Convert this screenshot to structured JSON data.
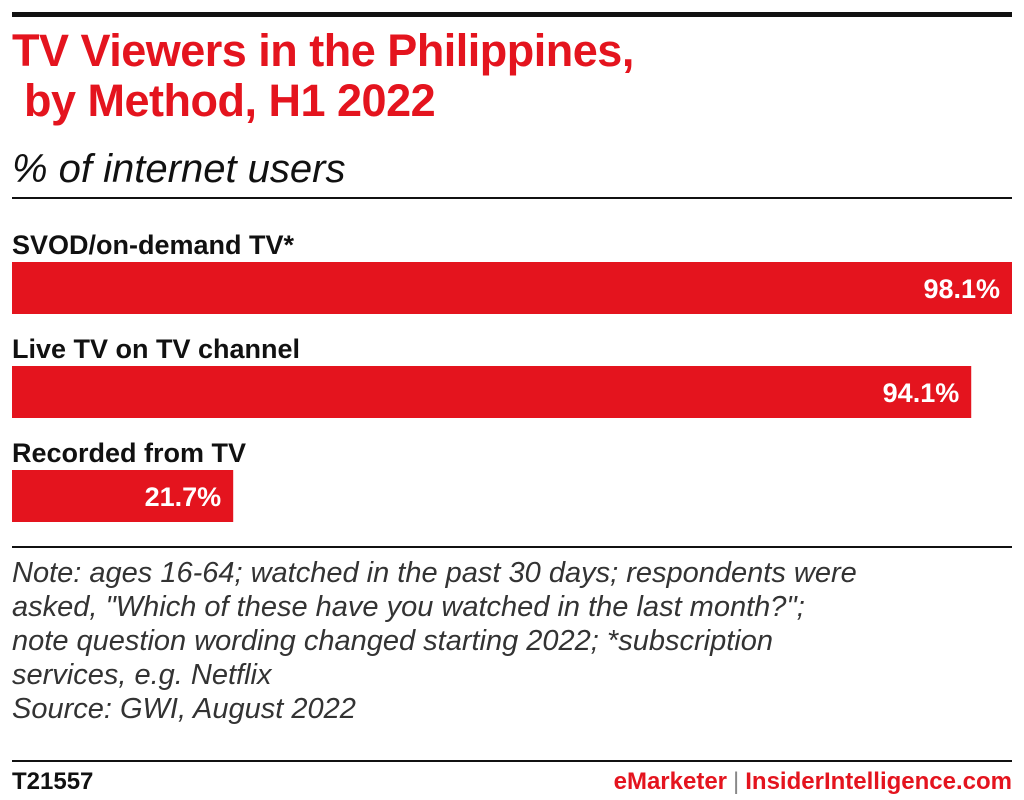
{
  "header": {
    "title_line1": "TV Viewers in the Philippines,",
    "title_line2": " by Method, H1 2022",
    "subtitle": "% of internet users"
  },
  "chart_data": {
    "type": "bar",
    "orientation": "horizontal",
    "categories": [
      "SVOD/on-demand TV*",
      "Live TV on TV channel",
      "Recorded from TV"
    ],
    "values": [
      98.1,
      94.1,
      21.7
    ],
    "value_labels": [
      "98.1%",
      "94.1%",
      "21.7%"
    ],
    "xlim": [
      0,
      98.1
    ],
    "grid": false,
    "bar_color": "#e4141e"
  },
  "notes": {
    "lines": [
      "Note: ages 16-64; watched in the past 30 days; respondents were",
      "asked, \"Which of these have you watched in the last month?\";",
      "note question wording changed starting 2022; *subscription",
      "services, e.g. Netflix",
      "Source: GWI, August 2022"
    ]
  },
  "footer": {
    "code": "T21557",
    "brand_emarketer": "eMarketer",
    "separator": "|",
    "brand_insider": "InsiderIntelligence.com"
  },
  "colors": {
    "accent": "#e4141e",
    "text": "#111111"
  }
}
